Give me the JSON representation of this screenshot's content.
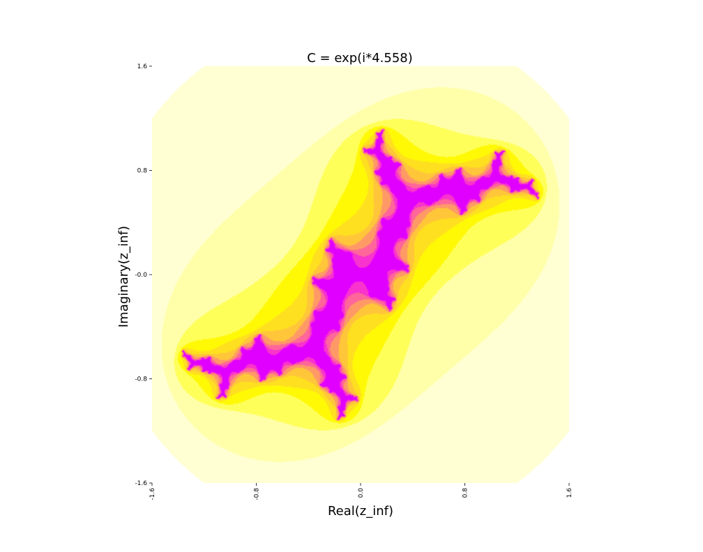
{
  "chart_data": {
    "type": "heatmap",
    "title": "C = exp(i*4.558)",
    "xlabel": "Real(z_inf)",
    "ylabel": "Imaginary(z_inf)",
    "xlim": [
      -1.6,
      1.6
    ],
    "ylim": [
      -1.6,
      1.6
    ],
    "x_ticks": [
      -1.6,
      -0.8,
      0.0,
      0.8,
      1.6
    ],
    "x_tick_labels": [
      "-1.6",
      "-0.8",
      "0.0",
      "0.8",
      "1.6"
    ],
    "y_ticks": [
      1.6,
      0.8,
      0.0,
      -0.8,
      -1.6
    ],
    "y_tick_labels": [
      "1.6",
      "0.8",
      "-0.0",
      "-0.8",
      "-1.6"
    ],
    "grid": false,
    "parameter_c_angle": 4.558,
    "max_iterations": 48,
    "escape_radius": 2.0,
    "colormap": {
      "inside": "#3a0a8c",
      "stops": [
        "#ffffff",
        "#ffffc8",
        "#ffff96",
        "#ffff00",
        "#ffe020",
        "#ffc040",
        "#ff8080",
        "#ff40c0",
        "#e000ff"
      ]
    }
  }
}
